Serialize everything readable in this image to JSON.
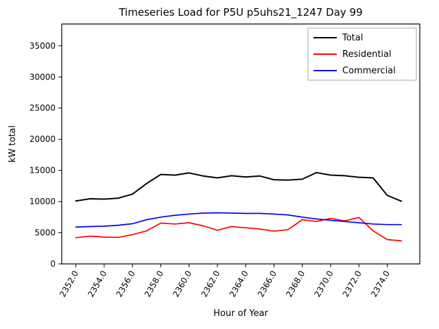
{
  "chart_data": {
    "type": "line",
    "title": "Timeseries Load for P5U p5uhs21_1247  Day 99",
    "xlabel": "Hour of Year",
    "ylabel": "kW total",
    "xlim": [
      2351.0,
      2376.3
    ],
    "ylim": [
      0,
      38500
    ],
    "xticks": [
      2352,
      2354,
      2356,
      2358,
      2360,
      2362,
      2364,
      2366,
      2368,
      2370,
      2372,
      2374
    ],
    "yticks": [
      0,
      5000,
      10000,
      15000,
      20000,
      25000,
      30000,
      35000
    ],
    "grid": false,
    "legend_position": "upper right",
    "legend_frame_color": "#aaaaaa",
    "x": [
      2352,
      2353,
      2354,
      2355,
      2356,
      2357,
      2358,
      2359,
      2360,
      2361,
      2362,
      2363,
      2364,
      2365,
      2366,
      2367,
      2368,
      2369,
      2370,
      2371,
      2372,
      2373,
      2374,
      2375
    ],
    "series": [
      {
        "name": "Total",
        "color": "#000000",
        "values": [
          10100,
          10450,
          10400,
          10550,
          11200,
          12900,
          14350,
          14250,
          14600,
          14100,
          13800,
          14150,
          13950,
          14100,
          13500,
          13450,
          13600,
          14650,
          14250,
          14150,
          13900,
          13800,
          11000,
          10050
        ]
      },
      {
        "name": "Residential",
        "color": "#ff0000",
        "values": [
          4200,
          4450,
          4300,
          4250,
          4700,
          5300,
          6550,
          6400,
          6600,
          6100,
          5400,
          6000,
          5800,
          5600,
          5250,
          5500,
          7100,
          6800,
          7300,
          6900,
          7450,
          5300,
          3900,
          3700
        ]
      },
      {
        "name": "Commercial",
        "color": "#0000ff",
        "values": [
          5900,
          6000,
          6050,
          6200,
          6450,
          7100,
          7500,
          7800,
          8000,
          8150,
          8200,
          8150,
          8100,
          8100,
          8000,
          7850,
          7500,
          7200,
          7000,
          6800,
          6600,
          6400,
          6300,
          6300
        ]
      }
    ]
  }
}
